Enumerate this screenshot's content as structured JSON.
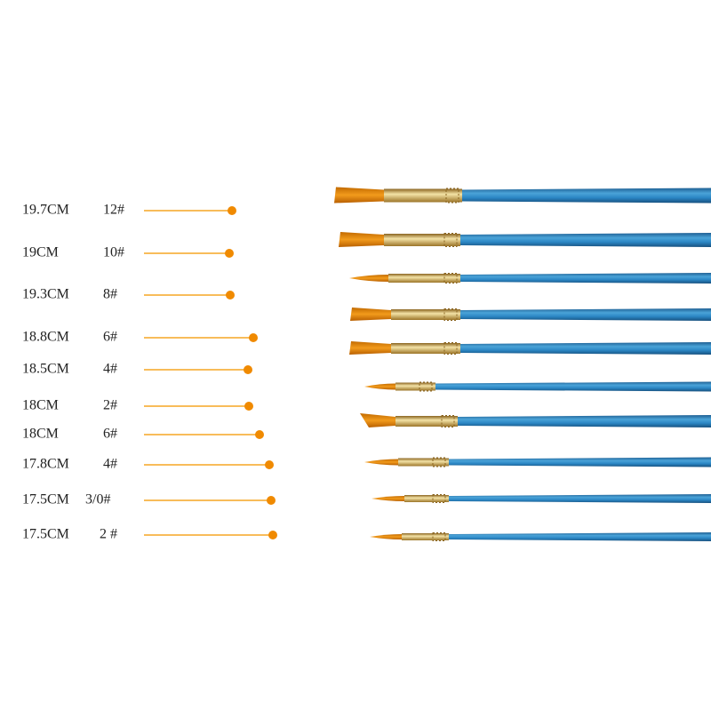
{
  "brushes": [
    {
      "length": "19.7CM",
      "size": "12#"
    },
    {
      "length": "19CM",
      "size": "10#"
    },
    {
      "length": "19.3CM",
      "size": "8#"
    },
    {
      "length": "18.8CM",
      "size": "6#"
    },
    {
      "length": "18.5CM",
      "size": "4#"
    },
    {
      "length": "18CM",
      "size": "2#"
    },
    {
      "length": "18CM",
      "size": "6#"
    },
    {
      "length": "17.8CM",
      "size": "4#"
    },
    {
      "length": "17.5CM",
      "size": "3/0#"
    },
    {
      "length": "17.5CM",
      "size": "2 #"
    }
  ]
}
